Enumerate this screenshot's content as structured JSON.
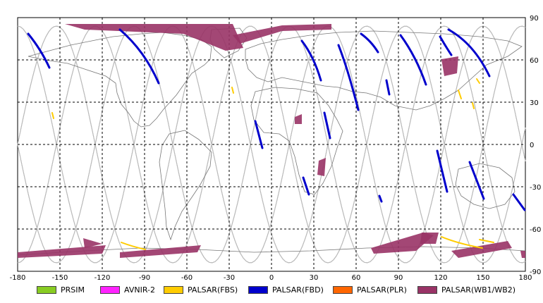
{
  "map": {
    "x_ticks": [
      "-180",
      "-150",
      "-120",
      "-90",
      "-60",
      "-30",
      "0",
      "30",
      "60",
      "90",
      "120",
      "150",
      "180"
    ],
    "y_ticks": [
      "90",
      "60",
      "30",
      "0",
      "-30",
      "-60",
      "-90"
    ],
    "lon_range": [
      -180,
      180
    ],
    "lat_range": [
      -90,
      90
    ],
    "grid": "dashed",
    "colors": {
      "PRSIM": "#88cc22",
      "AVNIR-2": "#ff22ff",
      "PALSAR(FBS)": "#ffcc00",
      "PALSAR(FBD)": "#0000cc",
      "PALSAR(PLR)": "#ff6600",
      "PALSAR(WB1/WB2)": "#993366"
    }
  },
  "legend": [
    {
      "label": "PRSIM",
      "color": "#88cc22"
    },
    {
      "label": "AVNIR-2",
      "color": "#ff22ff"
    },
    {
      "label": "PALSAR(FBS)",
      "color": "#ffcc00"
    },
    {
      "label": "PALSAR(FBD)",
      "color": "#0000cc"
    },
    {
      "label": "PALSAR(PLR)",
      "color": "#ff6600"
    },
    {
      "label": "PALSAR(WB1/WB2)",
      "color": "#993366"
    }
  ]
}
